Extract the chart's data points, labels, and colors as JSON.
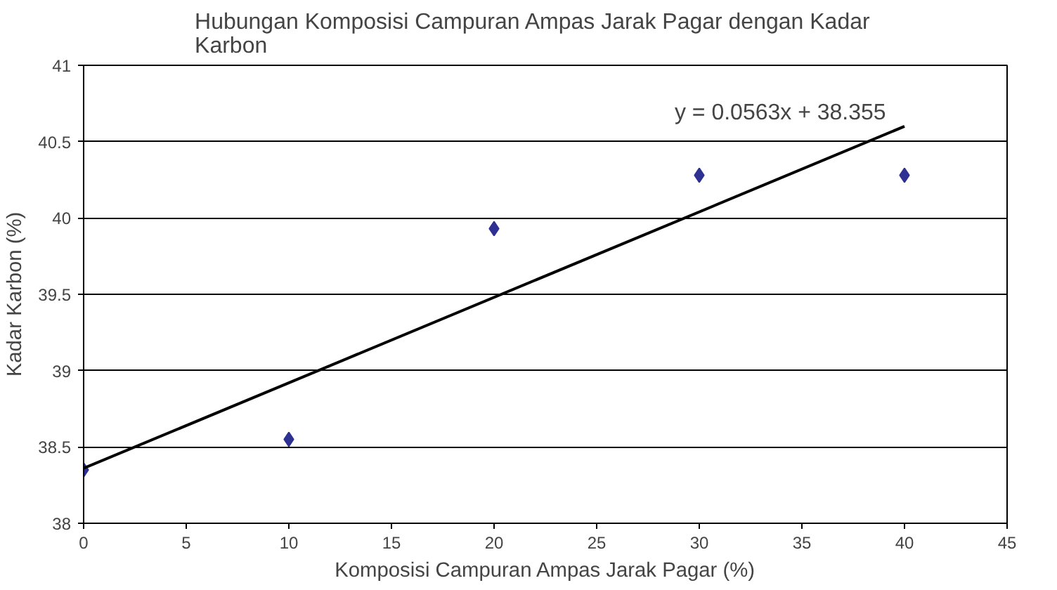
{
  "chart_data": {
    "type": "scatter",
    "title": "Hubungan Komposisi Campuran Ampas Jarak Pagar dengan Kadar Karbon",
    "xlabel": "Komposisi Campuran Ampas Jarak Pagar (%)",
    "ylabel": "Kadar Karbon (%)",
    "x": [
      0,
      10,
      20,
      30,
      40
    ],
    "series": [
      {
        "color": "#2e3192",
        "values": [
          38.35,
          38.55,
          39.93,
          40.28,
          40.28
        ],
        "marker": "diamond"
      },
      {
        "type": "line",
        "color": "#000000",
        "x": [
          0,
          40
        ],
        "values": [
          38.36,
          40.6
        ],
        "marker": "none"
      }
    ],
    "annotations": [
      "y = 0.0563x + 38.355"
    ],
    "xlim": [
      0,
      45
    ],
    "xticks": [
      0,
      5,
      10,
      15,
      20,
      25,
      30,
      35,
      40,
      45
    ],
    "ylim": [
      38,
      41
    ],
    "yticks": [
      38,
      38.5,
      39,
      39.5,
      40,
      40.5,
      41
    ],
    "grid": "y"
  }
}
